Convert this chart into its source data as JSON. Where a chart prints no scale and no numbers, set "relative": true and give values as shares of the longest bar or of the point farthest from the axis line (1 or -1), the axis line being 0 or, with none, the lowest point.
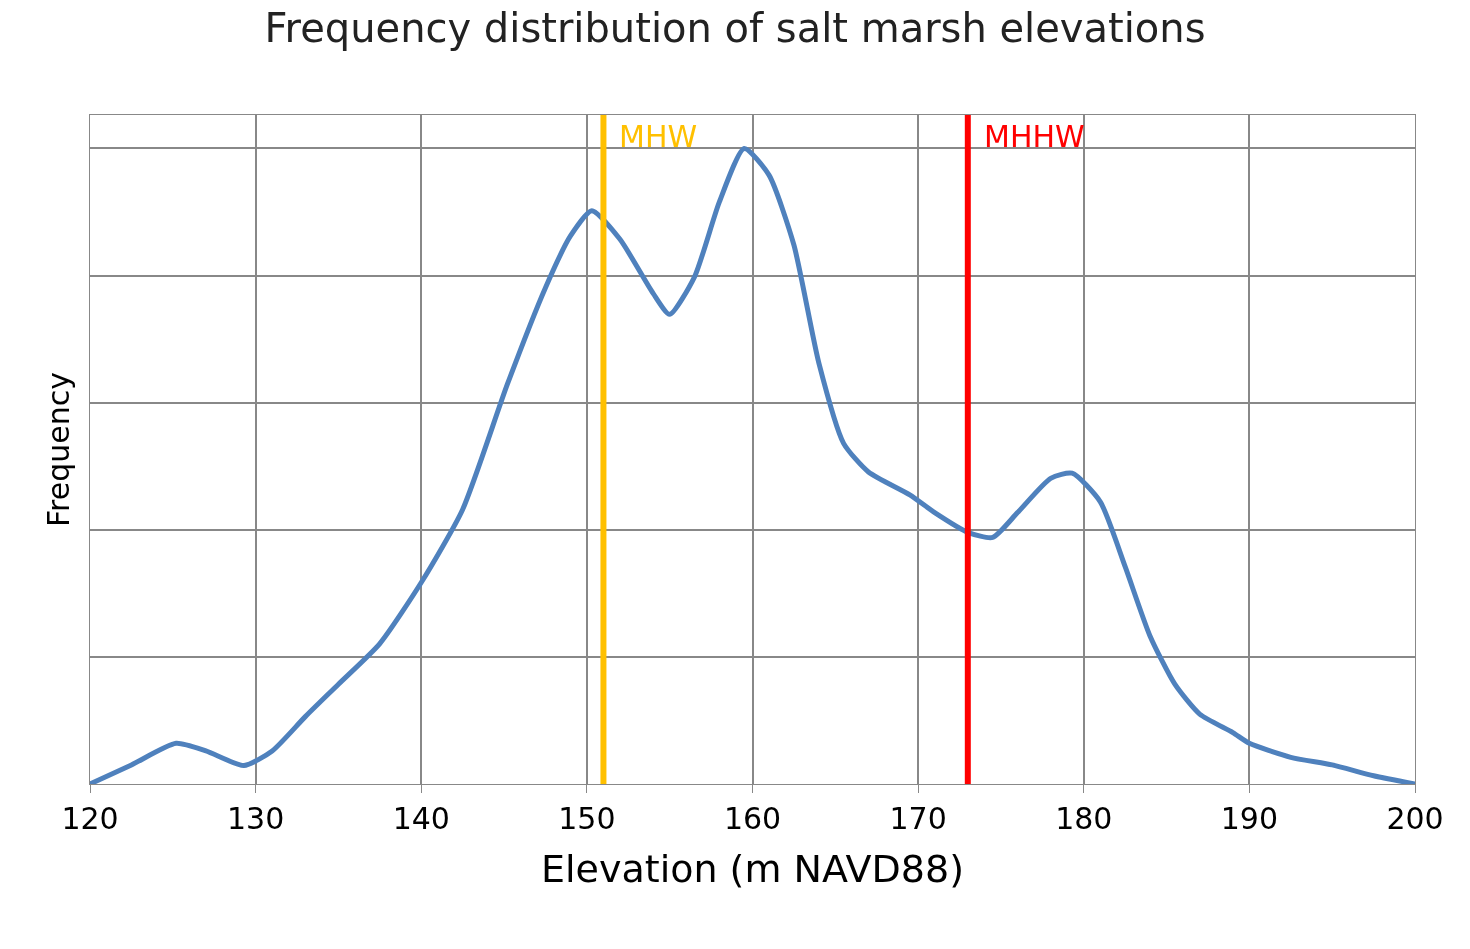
{
  "chart_data": {
    "type": "line",
    "title": "Frequency distribution of salt marsh elevations",
    "xlabel": "Elevation (m NAVD88)",
    "ylabel": "Frequency",
    "relative": true,
    "x": [
      120,
      122.5,
      125.2,
      127,
      129.3,
      131,
      133,
      135,
      137.5,
      140,
      142.5,
      145.2,
      147.5,
      149,
      150.3,
      152,
      154,
      155,
      156.5,
      158,
      159.5,
      161,
      162.5,
      164,
      165.5,
      167,
      169.5,
      171,
      173,
      174.5,
      176,
      178,
      179.3,
      181,
      182.5,
      184,
      185.5,
      187,
      189,
      190,
      192.5,
      195,
      197.5,
      200
    ],
    "series": [
      {
        "color": "#4f81bd",
        "values": [
          0,
          0.03,
          0.064,
          0.052,
          0.029,
          0.052,
          0.106,
          0.157,
          0.221,
          0.317,
          0.432,
          0.629,
          0.781,
          0.862,
          0.902,
          0.857,
          0.772,
          0.739,
          0.798,
          0.916,
          1.0,
          0.958,
          0.848,
          0.663,
          0.536,
          0.491,
          0.455,
          0.427,
          0.396,
          0.388,
          0.427,
          0.481,
          0.489,
          0.444,
          0.342,
          0.233,
          0.157,
          0.11,
          0.081,
          0.064,
          0.042,
          0.03,
          0.013,
          0
        ]
      }
    ],
    "xlim": [
      120,
      200
    ],
    "xticks": [
      120,
      130,
      140,
      150,
      160,
      170,
      180,
      190,
      200
    ],
    "grid": true,
    "marker": "none",
    "line_style": "solid",
    "ref_lines": [
      {
        "axis": "x",
        "value": 151,
        "label": "MHW",
        "color": "#ffc000"
      },
      {
        "axis": "x",
        "value": 173,
        "label": "MHHW",
        "color": "#ff0000"
      }
    ]
  }
}
